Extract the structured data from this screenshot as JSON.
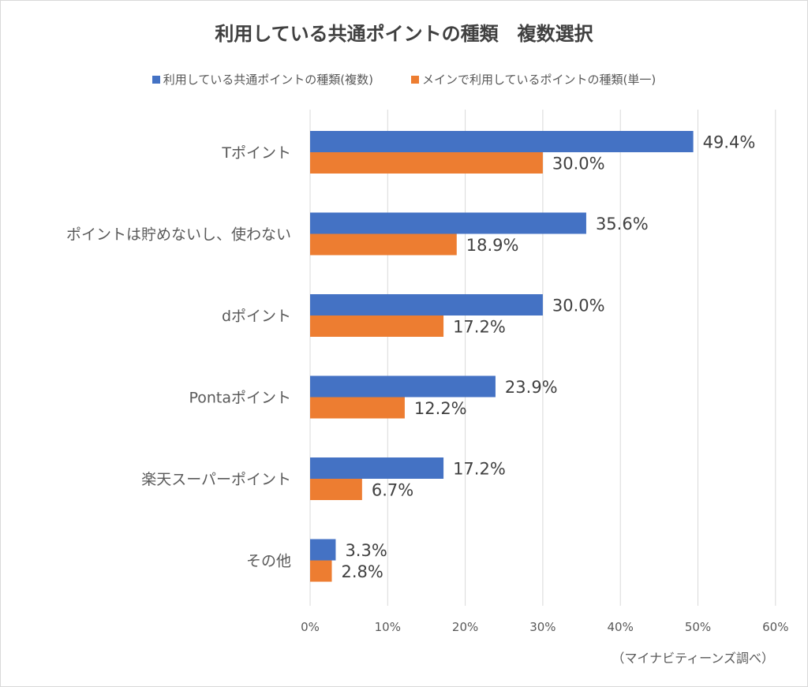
{
  "chart_data": {
    "type": "bar",
    "orientation": "horizontal",
    "title": "利用している共通ポイントの種類　複数選択",
    "categories": [
      "Tポイント",
      "ポイントは貯めないし、使わない",
      "dポイント",
      "Pontaポイント",
      "楽天スーパーポイント",
      "その他"
    ],
    "series": [
      {
        "name": "利用している共通ポイントの種類(複数)",
        "color": "#4472c4",
        "values": [
          49.4,
          35.6,
          30.0,
          23.9,
          17.2,
          3.3
        ]
      },
      {
        "name": "メインで利用しているポイントの種類(単一)",
        "color": "#ed7d31",
        "values": [
          30.0,
          18.9,
          17.2,
          12.2,
          6.7,
          2.8
        ]
      }
    ],
    "data_label_suffix": "%",
    "xlim": [
      0,
      60
    ],
    "x_ticks": [
      "0%",
      "10%",
      "20%",
      "30%",
      "40%",
      "50%",
      "60%"
    ],
    "grid": true,
    "legend_position": "top",
    "source_note": "（マイナビティーンズ調べ）"
  }
}
